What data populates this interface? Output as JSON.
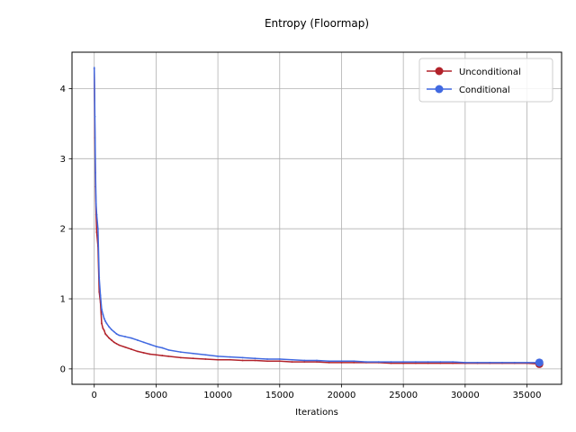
{
  "chart_data": {
    "type": "line",
    "title": "Entropy (Floormap)",
    "xlabel": "Iterations",
    "ylabel": "",
    "xlim": [
      -1800,
      37800
    ],
    "ylim": [
      -0.22,
      4.52
    ],
    "xticks": [
      0,
      5000,
      10000,
      15000,
      20000,
      25000,
      30000,
      35000
    ],
    "yticks": [
      0,
      1,
      2,
      3,
      4
    ],
    "grid": true,
    "legend_position": "top-right",
    "series": [
      {
        "name": "Unconditional",
        "color": "#b2222a",
        "marker_end": true,
        "x": [
          0,
          50,
          100,
          150,
          200,
          300,
          400,
          500,
          600,
          700,
          800,
          900,
          1000,
          1200,
          1400,
          1600,
          1800,
          2000,
          2500,
          3000,
          3500,
          4000,
          4500,
          5000,
          5500,
          6000,
          7000,
          8000,
          9000,
          10000,
          11000,
          12000,
          13000,
          14000,
          15000,
          16000,
          17000,
          18000,
          19000,
          20000,
          21000,
          22000,
          23000,
          24000,
          25000,
          26000,
          27000,
          28000,
          29000,
          30000,
          31000,
          32000,
          33000,
          34000,
          35000,
          36000
        ],
        "y": [
          4.28,
          3.3,
          2.6,
          2.2,
          1.95,
          1.75,
          1.1,
          0.95,
          0.65,
          0.58,
          0.55,
          0.5,
          0.48,
          0.44,
          0.41,
          0.38,
          0.36,
          0.34,
          0.31,
          0.28,
          0.25,
          0.23,
          0.21,
          0.2,
          0.19,
          0.18,
          0.16,
          0.15,
          0.14,
          0.13,
          0.13,
          0.12,
          0.12,
          0.11,
          0.11,
          0.1,
          0.1,
          0.1,
          0.09,
          0.09,
          0.09,
          0.09,
          0.09,
          0.08,
          0.08,
          0.08,
          0.08,
          0.08,
          0.08,
          0.08,
          0.08,
          0.08,
          0.08,
          0.08,
          0.08,
          0.07
        ]
      },
      {
        "name": "Conditional",
        "color": "#4169e1",
        "marker_end": true,
        "x": [
          0,
          50,
          100,
          150,
          200,
          300,
          400,
          500,
          600,
          700,
          800,
          900,
          1000,
          1200,
          1400,
          1600,
          1800,
          2000,
          2500,
          3000,
          3500,
          4000,
          4500,
          5000,
          5500,
          6000,
          7000,
          8000,
          9000,
          10000,
          11000,
          12000,
          13000,
          14000,
          15000,
          16000,
          17000,
          18000,
          19000,
          20000,
          21000,
          22000,
          23000,
          24000,
          25000,
          26000,
          27000,
          28000,
          29000,
          30000,
          31000,
          32000,
          33000,
          34000,
          35000,
          36000
        ],
        "y": [
          4.3,
          3.6,
          2.8,
          2.35,
          2.2,
          2.0,
          1.3,
          1.05,
          0.85,
          0.78,
          0.72,
          0.68,
          0.65,
          0.6,
          0.56,
          0.53,
          0.5,
          0.48,
          0.46,
          0.44,
          0.41,
          0.38,
          0.35,
          0.32,
          0.3,
          0.27,
          0.24,
          0.22,
          0.2,
          0.18,
          0.17,
          0.16,
          0.15,
          0.14,
          0.14,
          0.13,
          0.12,
          0.12,
          0.11,
          0.11,
          0.11,
          0.1,
          0.1,
          0.1,
          0.1,
          0.1,
          0.1,
          0.1,
          0.1,
          0.09,
          0.09,
          0.09,
          0.09,
          0.09,
          0.09,
          0.09
        ]
      }
    ]
  }
}
